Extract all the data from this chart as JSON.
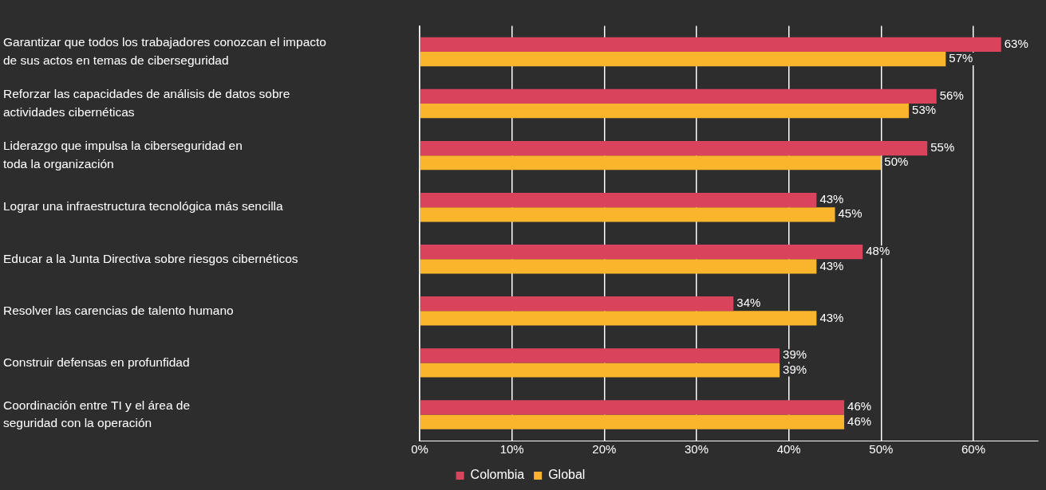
{
  "chart_data": {
    "type": "bar",
    "orientation": "horizontal",
    "categories": [
      "Garantizar que todos los trabajadores conozcan el impacto\nde sus actos en temas de ciberseguridad",
      "Reforzar las capacidades de análisis de datos sobre\nactividades cibernéticas",
      "Liderazgo que impulsa la ciberseguridad en\ntoda la organización",
      "Lograr una infraestructura tecnológica más sencilla",
      "Educar a la Junta Directiva sobre riesgos cibernéticos",
      "Resolver las carencias de talento humano",
      "Construir defensas en profunfidad",
      "Coordinación entre TI y el área de\nseguridad con la operación"
    ],
    "series": [
      {
        "name": "Colombia",
        "color": "#d9435b",
        "values": [
          63,
          56,
          55,
          43,
          48,
          34,
          39,
          46
        ],
        "value_labels": [
          "63%",
          "56%",
          "55%",
          "43%",
          "48%",
          "34%",
          "39%",
          "46%"
        ]
      },
      {
        "name": "Global",
        "color": "#fbb52c",
        "values": [
          57,
          53,
          50,
          45,
          43,
          43,
          39,
          46
        ],
        "value_labels": [
          "57%",
          "53%",
          "50%",
          "45%",
          "43%",
          "43%",
          "39%",
          "46%"
        ]
      }
    ],
    "xlim": [
      0,
      67
    ],
    "xticks": [
      {
        "value": 0,
        "label": "0%"
      },
      {
        "value": 10,
        "label": "10%"
      },
      {
        "value": 20,
        "label": "20%"
      },
      {
        "value": 30,
        "label": "30%"
      },
      {
        "value": 40,
        "label": "40%"
      },
      {
        "value": 50,
        "label": "50%"
      },
      {
        "value": 60,
        "label": "60%"
      }
    ],
    "grid": "x",
    "legend": "bottom"
  }
}
